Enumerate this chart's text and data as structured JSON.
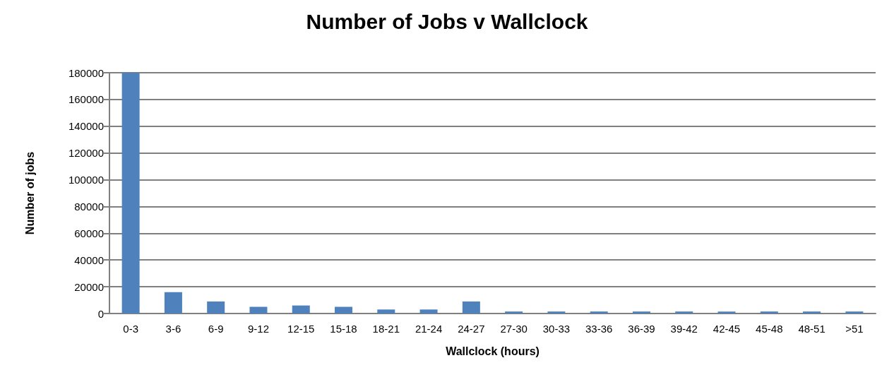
{
  "chart_data": {
    "type": "bar",
    "title": "Number of Jobs v Wallclock",
    "xlabel": "Wallclock (hours)",
    "ylabel": "Number of jobs",
    "categories": [
      "0-3",
      "3-6",
      "6-9",
      "9-12",
      "12-15",
      "15-18",
      "18-21",
      "21-24",
      "24-27",
      "27-30",
      "30-33",
      "33-36",
      "36-39",
      "39-42",
      "42-45",
      "45-48",
      "48-51",
      ">51"
    ],
    "values": [
      180000,
      16000,
      9000,
      5000,
      6000,
      5000,
      3000,
      3000,
      9000,
      1500,
      1500,
      1500,
      1500,
      1500,
      1500,
      1500,
      1500,
      1500
    ],
    "color": "#4f81bd",
    "ylim": [
      0,
      180000
    ],
    "yticks": [
      0,
      20000,
      40000,
      60000,
      80000,
      100000,
      120000,
      140000,
      160000,
      180000
    ],
    "grid": "y"
  }
}
